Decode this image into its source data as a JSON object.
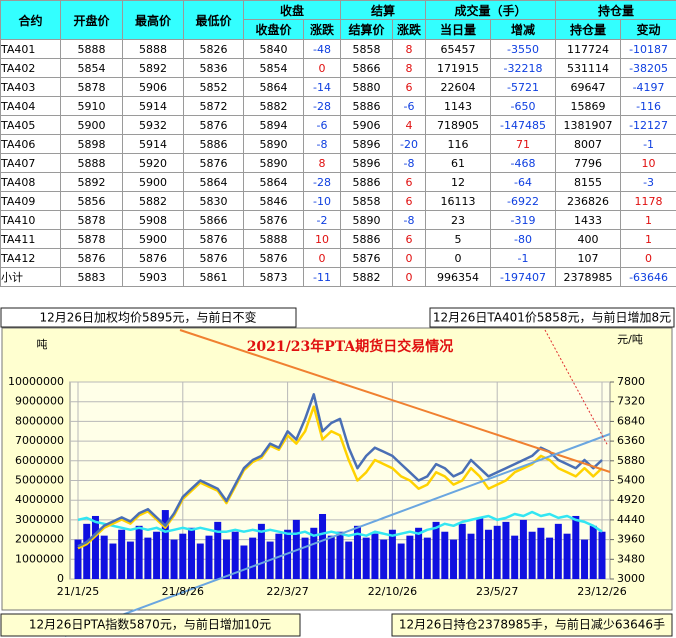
{
  "table": {
    "groups": [
      "收盘",
      "结算",
      "成交量（手）",
      "持仓量"
    ],
    "header": [
      "合约",
      "开盘价",
      "最高价",
      "最低价",
      "收盘价",
      "涨跌",
      "结算价",
      "涨跌",
      "当日量",
      "增减",
      "持仓量",
      "变动"
    ],
    "rows": [
      [
        "TA401",
        5888,
        5888,
        5826,
        5840,
        -48,
        5858,
        8,
        65457,
        -3550,
        117724,
        -10187
      ],
      [
        "TA402",
        5854,
        5892,
        5836,
        5854,
        0,
        5866,
        8,
        171915,
        -32218,
        531114,
        -38205
      ],
      [
        "TA403",
        5878,
        5906,
        5852,
        5864,
        -14,
        5880,
        6,
        22604,
        -5721,
        69647,
        -4197
      ],
      [
        "TA404",
        5910,
        5914,
        5872,
        5882,
        -28,
        5886,
        -6,
        1143,
        -650,
        15869,
        -116
      ],
      [
        "TA405",
        5900,
        5932,
        5876,
        5894,
        -6,
        5906,
        4,
        718905,
        -147485,
        1381907,
        -12127
      ],
      [
        "TA406",
        5898,
        5914,
        5886,
        5890,
        -8,
        5896,
        -20,
        116,
        71,
        8007,
        -1
      ],
      [
        "TA407",
        5888,
        5920,
        5876,
        5890,
        8,
        5896,
        -8,
        61,
        -468,
        7796,
        10
      ],
      [
        "TA408",
        5892,
        5900,
        5864,
        5864,
        -28,
        5886,
        6,
        12,
        -64,
        8155,
        -3
      ],
      [
        "TA409",
        5856,
        5882,
        5830,
        5846,
        -10,
        5858,
        6,
        16113,
        -6922,
        236826,
        1178
      ],
      [
        "TA410",
        5878,
        5908,
        5866,
        5876,
        -2,
        5890,
        -8,
        23,
        -319,
        1433,
        1
      ],
      [
        "TA411",
        5878,
        5900,
        5876,
        5888,
        10,
        5886,
        6,
        5,
        -80,
        400,
        1
      ],
      [
        "TA412",
        5876,
        5876,
        5876,
        5876,
        0,
        5876,
        0,
        0,
        -1,
        107,
        0
      ],
      [
        "小计",
        5883,
        5903,
        5861,
        5873,
        -11,
        5882,
        0,
        996354,
        -197407,
        2378985,
        -63646
      ]
    ]
  },
  "notes": [
    "12月26日加权均价5895元，与前日不变",
    "12月26日TA401价5858元，与前日增加8元",
    "12月26日PTA指数5870元，与前日增加10元",
    "12月26日持仓2378985手，与前日减少63646手"
  ],
  "chart_data": {
    "type": "combo",
    "title": "2021/23年PTA期货日交易情况",
    "y_label": "吨",
    "y2_label": "元/吨",
    "grid": true,
    "categories": [
      "21/1/25",
      null,
      null,
      null,
      null,
      null,
      null,
      null,
      null,
      null,
      null,
      null,
      "21/8/26",
      null,
      null,
      null,
      null,
      null,
      null,
      null,
      null,
      null,
      null,
      null,
      "22/3/27",
      null,
      null,
      null,
      null,
      null,
      null,
      null,
      null,
      null,
      null,
      null,
      "22/10/26",
      null,
      null,
      null,
      null,
      null,
      null,
      null,
      null,
      null,
      null,
      null,
      "23/5/27",
      null,
      null,
      null,
      null,
      null,
      null,
      null,
      null,
      null,
      null,
      null,
      "23/12/26"
    ],
    "ylim": [
      0,
      10000000
    ],
    "yticks": [
      0,
      1000000,
      2000000,
      3000000,
      4000000,
      5000000,
      6000000,
      7000000,
      8000000,
      9000000,
      10000000
    ],
    "y2lim": [
      3000,
      7800
    ],
    "y2ticks": [
      3000,
      3480,
      3960,
      4440,
      4920,
      5400,
      5880,
      6360,
      6840,
      7320,
      7800
    ],
    "series": [
      {
        "type": "bar",
        "color": "#1010e0",
        "values": [
          2000000,
          2800000,
          3200000,
          2200000,
          1800000,
          2500000,
          1900000,
          2700000,
          2100000,
          2400000,
          3500000,
          2000000,
          2300000,
          2600000,
          1800000,
          2200000,
          2900000,
          2000000,
          2400000,
          1700000,
          2100000,
          2800000,
          1900000,
          2300000,
          2500000,
          3000000,
          2100000,
          2600000,
          3300000,
          2200000,
          2400000,
          1900000,
          2700000,
          2100000,
          2300000,
          2000000,
          2500000,
          1800000,
          2200000,
          2600000,
          2100000,
          2900000,
          2400000,
          2000000,
          2800000,
          2300000,
          3100000,
          2500000,
          2700000,
          2900000,
          2200000,
          3000000,
          2400000,
          2600000,
          2100000,
          2800000,
          2300000,
          3200000,
          2000000,
          2700000,
          2400000
        ]
      },
      {
        "type": "line",
        "color": "#33e6f2",
        "values": [
          3000000,
          3100000,
          2900000,
          2800000,
          2700000,
          2600000,
          2500000,
          2600000,
          2500000,
          2600000,
          2400000,
          2500000,
          2600000,
          2500000,
          2600000,
          2500000,
          2400000,
          2400000,
          2500000,
          2400000,
          2500000,
          2400000,
          2500000,
          2400000,
          2300000,
          2300000,
          2400000,
          2200000,
          2300000,
          2400000,
          2300000,
          2200000,
          2300000,
          2200000,
          2400000,
          2300000,
          2200000,
          2300000,
          2400000,
          2300000,
          2500000,
          2600000,
          2800000,
          2700000,
          2900000,
          3000000,
          3100000,
          3200000,
          3000000,
          3100000,
          3300000,
          3200000,
          3400000,
          3200000,
          3300000,
          3100000,
          3200000,
          3000000,
          2900000,
          2700000,
          2400000
        ]
      },
      {
        "type": "line",
        "axis": "y2",
        "color": "#ffd200",
        "values": [
          3750,
          3850,
          4050,
          4250,
          4350,
          4450,
          4350,
          4550,
          4650,
          4450,
          4250,
          4550,
          4950,
          5150,
          5350,
          5250,
          5150,
          4850,
          5250,
          5650,
          5850,
          5950,
          6250,
          6150,
          6500,
          6300,
          6600,
          7200,
          6400,
          6600,
          6500,
          5900,
          5400,
          5600,
          5900,
          5800,
          5700,
          5500,
          5400,
          5200,
          5300,
          5600,
          5500,
          5300,
          5400,
          5700,
          5500,
          5200,
          5300,
          5400,
          5600,
          5700,
          5800,
          6000,
          5900,
          5700,
          5600,
          5500,
          5700,
          5500,
          5700
        ]
      },
      {
        "type": "line",
        "axis": "y2",
        "color": "#4a6fb5",
        "values": [
          3800,
          3900,
          4100,
          4300,
          4400,
          4500,
          4400,
          4600,
          4700,
          4500,
          4300,
          4600,
          5000,
          5200,
          5400,
          5300,
          5200,
          4900,
          5300,
          5700,
          5900,
          6000,
          6300,
          6200,
          6600,
          6400,
          6900,
          7500,
          6600,
          6800,
          6900,
          6200,
          5700,
          6000,
          6200,
          6100,
          6000,
          5800,
          5600,
          5400,
          5500,
          5800,
          5700,
          5500,
          5600,
          5900,
          5700,
          5500,
          5600,
          5700,
          5800,
          5900,
          6000,
          6200,
          6100,
          5900,
          5800,
          5700,
          5900,
          5700,
          5900
        ]
      }
    ]
  }
}
